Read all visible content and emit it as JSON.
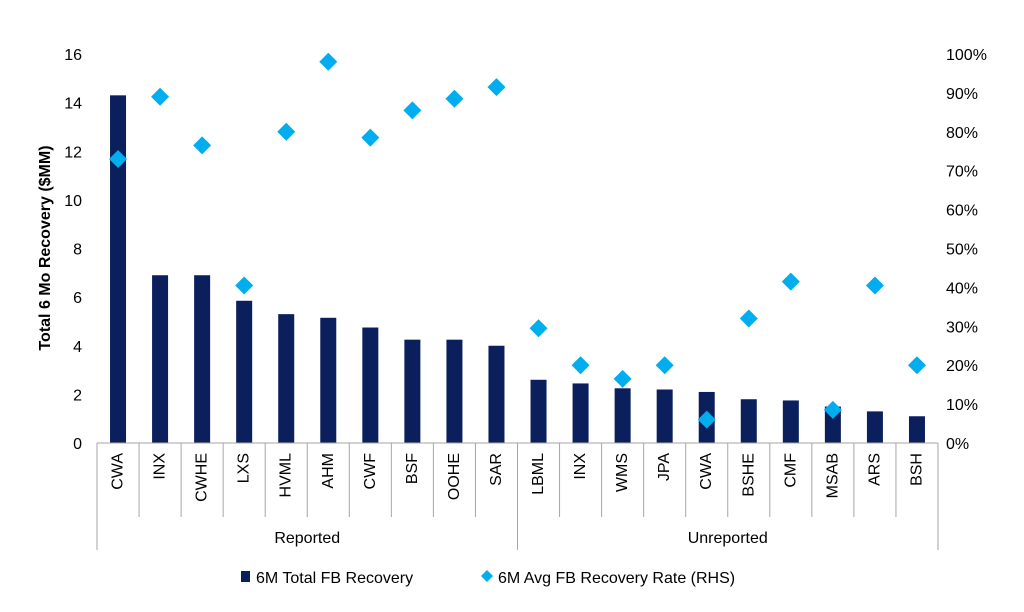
{
  "chart_data": {
    "type": "bar",
    "title": "",
    "xlabel": "",
    "ylabel": "Total 6 Mo Recovery ($MM)",
    "ylim": [
      0,
      16
    ],
    "y_ticks": [
      "0",
      "2",
      "4",
      "6",
      "8",
      "10",
      "12",
      "14",
      "16"
    ],
    "y2label": "",
    "y2lim": [
      0,
      1
    ],
    "y2_ticks": [
      "0%",
      "10%",
      "20%",
      "30%",
      "40%",
      "50%",
      "60%",
      "70%",
      "80%",
      "90%",
      "100%"
    ],
    "grid": false,
    "categories": [
      "CWA",
      "INX",
      "CWHE",
      "LXS",
      "HVML",
      "AHM",
      "CWF",
      "BSF",
      "OOHE",
      "SAR",
      "LBML",
      "INX",
      "WMS",
      "JPA",
      "CWA",
      "BSHE",
      "CMF",
      "MSAB",
      "ARS",
      "BSH"
    ],
    "groups": [
      {
        "label": "Reported",
        "count": 10
      },
      {
        "label": "Unreported",
        "count": 10
      }
    ],
    "series": [
      {
        "name": "6M Total FB Recovery",
        "type": "bar",
        "axis": "left",
        "color": "#0a1f5c",
        "values": [
          14.3,
          6.9,
          6.9,
          5.85,
          5.3,
          5.15,
          4.75,
          4.25,
          4.25,
          4.0,
          2.6,
          2.45,
          2.25,
          2.2,
          2.1,
          1.8,
          1.75,
          1.5,
          1.3,
          1.1
        ]
      },
      {
        "name": "6M Avg FB Recovery Rate (RHS)",
        "type": "scatter",
        "marker": "diamond",
        "axis": "right",
        "color": "#00aeef",
        "values": [
          0.73,
          0.89,
          0.765,
          0.405,
          0.8,
          0.98,
          0.785,
          0.855,
          0.885,
          0.915,
          0.295,
          0.2,
          0.165,
          0.2,
          0.06,
          0.32,
          0.415,
          0.085,
          0.405,
          0.2
        ]
      }
    ],
    "legend": "bottom-center"
  }
}
